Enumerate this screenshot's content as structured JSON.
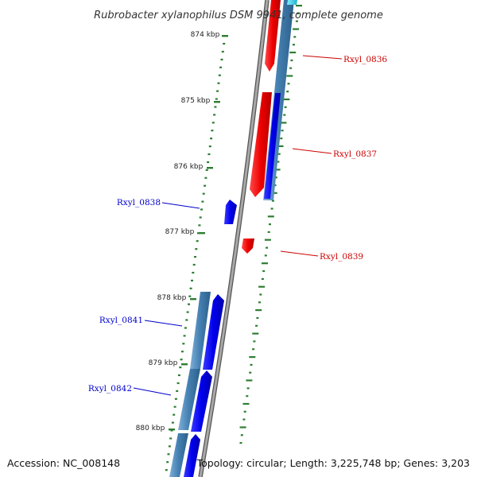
{
  "title": "Rubrobacter xylanophilus DSM 9941, complete genome",
  "footer": {
    "accession": "Accession: NC_008148",
    "summary": "Topology: circular; Length: 3,225,748 bp; Genes: 3,203"
  },
  "colors": {
    "forward_gene": "#ff0000",
    "reverse_gene": "#0000ff",
    "cds_band": "#4682b4",
    "tick": "#2e7d32",
    "backbone": "#808080"
  },
  "scale_labels": [
    "874 kbp",
    "875 kbp",
    "876 kbp",
    "877 kbp",
    "878 kbp",
    "879 kbp",
    "880 kbp"
  ],
  "genes": [
    {
      "name": "Rxyl_0836",
      "strand": "forward",
      "color": "#cc0000"
    },
    {
      "name": "Rxyl_0837",
      "strand": "forward",
      "color": "#cc0000"
    },
    {
      "name": "Rxyl_0838",
      "strand": "reverse",
      "color": "#0000cc"
    },
    {
      "name": "Rxyl_0839",
      "strand": "forward",
      "color": "#cc0000"
    },
    {
      "name": "Rxyl_0841",
      "strand": "reverse",
      "color": "#0000cc"
    },
    {
      "name": "Rxyl_0842",
      "strand": "reverse",
      "color": "#0000cc"
    }
  ]
}
